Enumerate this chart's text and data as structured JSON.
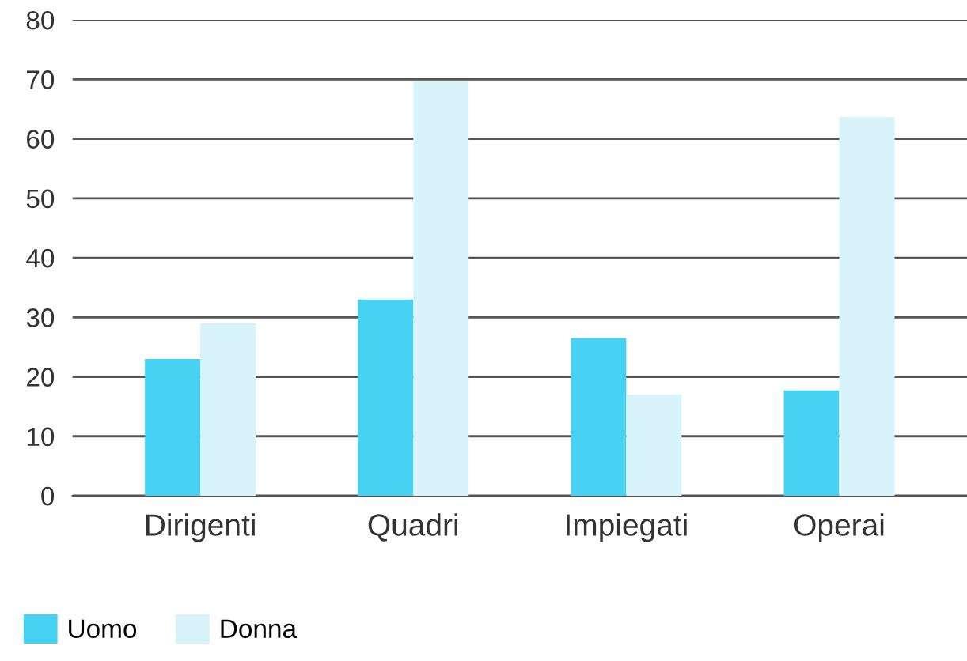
{
  "chart_data": {
    "type": "bar",
    "categories": [
      "Dirigenti",
      "Quadri",
      "Impiegati",
      "Operai"
    ],
    "series": [
      {
        "name": "Uomo",
        "color": "#47d1f3",
        "values": [
          23,
          33,
          26.5,
          17.7
        ]
      },
      {
        "name": "Donna",
        "color": "#d8f4fa",
        "values": [
          29,
          69.6,
          17,
          63.7
        ]
      }
    ],
    "ylim": [
      0,
      80
    ],
    "yticks": [
      0,
      10,
      20,
      30,
      40,
      50,
      60,
      70,
      80
    ],
    "grid": "y",
    "legend": "bottom left"
  }
}
